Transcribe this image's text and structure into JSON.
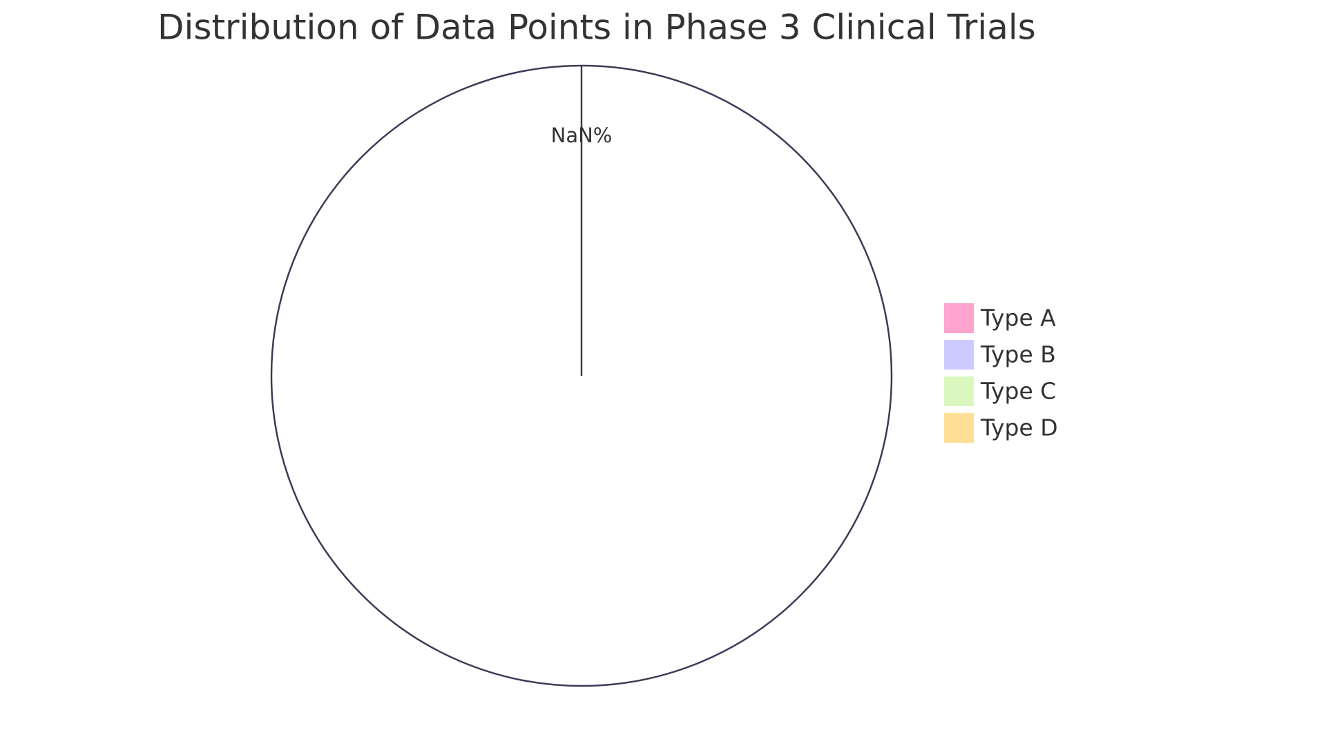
{
  "chart_data": {
    "type": "pie",
    "title": "Distribution of Data Points in Phase 3 Clinical Trials",
    "categories": [
      "Type A",
      "Type B",
      "Type C",
      "Type D"
    ],
    "colors": [
      "#ffa3cf",
      "#cbcbff",
      "#dbf7c0",
      "#ffdf96"
    ],
    "values": [
      null,
      null,
      null,
      null
    ],
    "value_labels": [
      "NaN%",
      null,
      null,
      null
    ]
  }
}
